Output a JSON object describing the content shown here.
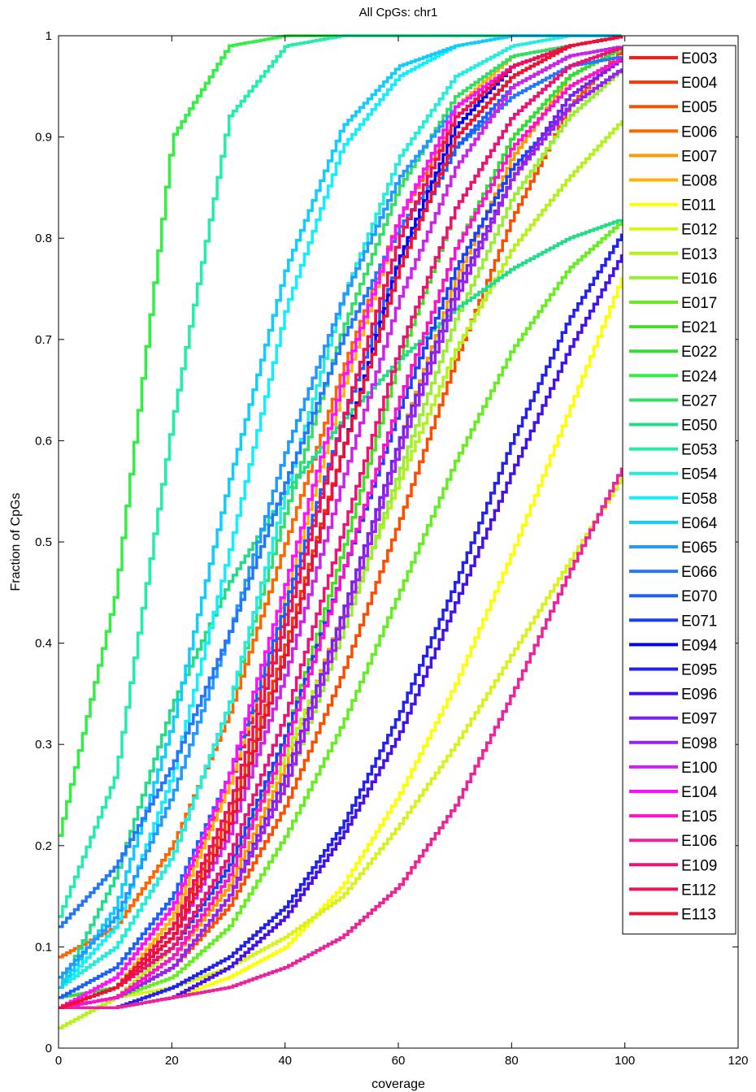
{
  "chart_data": {
    "type": "line",
    "title": "All CpGs: chr1",
    "xlabel": "coverage",
    "ylabel": "Fraction of CpGs",
    "xlim": [
      0,
      120
    ],
    "ylim": [
      0,
      1
    ],
    "xticks": [
      0,
      20,
      40,
      60,
      80,
      100,
      120
    ],
    "yticks": [
      0,
      0.1,
      0.2,
      0.3,
      0.4,
      0.5,
      0.6,
      0.7,
      0.8,
      0.9,
      1
    ],
    "grid": false,
    "legend_position": "top-right, inside",
    "curve_style": "stair-step cumulative",
    "series": [
      {
        "name": "E003",
        "color": "#ff1a1a",
        "values": [
          0.04,
          0.07,
          0.14,
          0.26,
          0.43,
          0.62,
          0.8,
          0.92,
          0.97,
          0.99,
          1.0
        ]
      },
      {
        "name": "E004",
        "color": "#ff3300",
        "values": [
          0.04,
          0.06,
          0.12,
          0.23,
          0.4,
          0.59,
          0.77,
          0.9,
          0.96,
          0.99,
          1.0
        ]
      },
      {
        "name": "E005",
        "color": "#ff4d00",
        "values": [
          0.04,
          0.05,
          0.08,
          0.14,
          0.24,
          0.37,
          0.52,
          0.68,
          0.82,
          0.93,
          0.99
        ]
      },
      {
        "name": "E006",
        "color": "#ff6600",
        "values": [
          0.09,
          0.12,
          0.2,
          0.33,
          0.5,
          0.67,
          0.82,
          0.92,
          0.97,
          0.99,
          1.0
        ]
      },
      {
        "name": "E007",
        "color": "#ff9900",
        "values": [
          0.04,
          0.05,
          0.09,
          0.16,
          0.28,
          0.43,
          0.6,
          0.76,
          0.88,
          0.96,
          0.99
        ]
      },
      {
        "name": "E008",
        "color": "#ffb300",
        "values": [
          0.04,
          0.06,
          0.13,
          0.26,
          0.45,
          0.65,
          0.82,
          0.93,
          0.98,
          0.99,
          1.0
        ]
      },
      {
        "name": "E011",
        "color": "#ffff00",
        "values": [
          0.04,
          0.04,
          0.05,
          0.07,
          0.1,
          0.16,
          0.25,
          0.36,
          0.49,
          0.63,
          0.77
        ]
      },
      {
        "name": "E012",
        "color": "#d9f21a",
        "values": [
          0.04,
          0.05,
          0.06,
          0.08,
          0.11,
          0.15,
          0.22,
          0.3,
          0.39,
          0.48,
          0.57
        ]
      },
      {
        "name": "E013",
        "color": "#b3f21a",
        "values": [
          0.02,
          0.05,
          0.1,
          0.18,
          0.29,
          0.42,
          0.56,
          0.69,
          0.79,
          0.86,
          0.92
        ]
      },
      {
        "name": "E016",
        "color": "#99ee33",
        "values": [
          0.04,
          0.05,
          0.08,
          0.15,
          0.26,
          0.41,
          0.57,
          0.72,
          0.84,
          0.92,
          0.97
        ]
      },
      {
        "name": "E017",
        "color": "#66ee22",
        "values": [
          0.04,
          0.05,
          0.07,
          0.12,
          0.21,
          0.32,
          0.45,
          0.58,
          0.69,
          0.77,
          0.82
        ]
      },
      {
        "name": "E021",
        "color": "#44dd22",
        "values": [
          0.04,
          0.05,
          0.09,
          0.17,
          0.31,
          0.49,
          0.68,
          0.83,
          0.92,
          0.97,
          0.99
        ]
      },
      {
        "name": "E022",
        "color": "#33dd33",
        "values": [
          0.05,
          0.06,
          0.1,
          0.18,
          0.31,
          0.47,
          0.64,
          0.79,
          0.9,
          0.96,
          0.99
        ]
      },
      {
        "name": "E024",
        "color": "#33ee44",
        "values": [
          0.21,
          0.45,
          0.9,
          0.99,
          1.0,
          1.0,
          1.0,
          1.0,
          1.0,
          1.0,
          1.0
        ]
      },
      {
        "name": "E027",
        "color": "#33dd66",
        "values": [
          0.06,
          0.1,
          0.19,
          0.34,
          0.53,
          0.71,
          0.85,
          0.94,
          0.98,
          0.99,
          1.0
        ]
      },
      {
        "name": "E050",
        "color": "#22dd88",
        "values": [
          0.06,
          0.17,
          0.34,
          0.46,
          0.55,
          0.62,
          0.68,
          0.73,
          0.77,
          0.8,
          0.82
        ]
      },
      {
        "name": "E053",
        "color": "#22eeaa",
        "values": [
          0.13,
          0.27,
          0.62,
          0.92,
          0.99,
          1.0,
          1.0,
          1.0,
          1.0,
          1.0,
          1.0
        ]
      },
      {
        "name": "E054",
        "color": "#22eedd",
        "values": [
          0.06,
          0.1,
          0.19,
          0.34,
          0.55,
          0.74,
          0.88,
          0.96,
          0.99,
          1.0,
          1.0
        ]
      },
      {
        "name": "E058",
        "color": "#11eeff",
        "values": [
          0.06,
          0.12,
          0.27,
          0.49,
          0.73,
          0.89,
          0.96,
          0.99,
          1.0,
          1.0,
          1.0
        ]
      },
      {
        "name": "E064",
        "color": "#11ccff",
        "values": [
          0.06,
          0.14,
          0.32,
          0.56,
          0.77,
          0.91,
          0.97,
          0.99,
          1.0,
          1.0,
          1.0
        ]
      },
      {
        "name": "E065",
        "color": "#2299ff",
        "values": [
          0.07,
          0.13,
          0.25,
          0.41,
          0.59,
          0.74,
          0.86,
          0.93,
          0.97,
          0.99,
          1.0
        ]
      },
      {
        "name": "E066",
        "color": "#2277ff",
        "values": [
          0.12,
          0.18,
          0.28,
          0.41,
          0.56,
          0.7,
          0.81,
          0.89,
          0.94,
          0.97,
          0.98
        ]
      },
      {
        "name": "E070",
        "color": "#1a5fff",
        "values": [
          0.05,
          0.08,
          0.15,
          0.27,
          0.44,
          0.62,
          0.78,
          0.89,
          0.95,
          0.98,
          0.99
        ]
      },
      {
        "name": "E071",
        "color": "#1a3fff",
        "values": [
          0.04,
          0.06,
          0.1,
          0.18,
          0.31,
          0.47,
          0.63,
          0.77,
          0.87,
          0.93,
          0.97
        ]
      },
      {
        "name": "E094",
        "color": "#0000ff",
        "values": [
          0.04,
          0.06,
          0.11,
          0.22,
          0.39,
          0.59,
          0.78,
          0.91,
          0.97,
          0.99,
          1.0
        ]
      },
      {
        "name": "E095",
        "color": "#2222ee",
        "values": [
          0.04,
          0.04,
          0.06,
          0.09,
          0.14,
          0.22,
          0.33,
          0.46,
          0.6,
          0.72,
          0.81
        ]
      },
      {
        "name": "E096",
        "color": "#4411ee",
        "values": [
          0.04,
          0.04,
          0.05,
          0.08,
          0.13,
          0.21,
          0.31,
          0.44,
          0.57,
          0.69,
          0.79
        ]
      },
      {
        "name": "E097",
        "color": "#7722ee",
        "values": [
          0.04,
          0.05,
          0.08,
          0.15,
          0.27,
          0.43,
          0.6,
          0.75,
          0.86,
          0.94,
          0.98
        ]
      },
      {
        "name": "E098",
        "color": "#9922ee",
        "values": [
          0.04,
          0.05,
          0.08,
          0.15,
          0.26,
          0.42,
          0.59,
          0.74,
          0.86,
          0.93,
          0.97
        ]
      },
      {
        "name": "E100",
        "color": "#cc22ee",
        "values": [
          0.04,
          0.06,
          0.11,
          0.21,
          0.37,
          0.56,
          0.74,
          0.87,
          0.95,
          0.98,
          0.99
        ]
      },
      {
        "name": "E104",
        "color": "#ff11ff",
        "values": [
          0.04,
          0.07,
          0.14,
          0.27,
          0.46,
          0.66,
          0.82,
          0.93,
          0.97,
          0.99,
          1.0
        ]
      },
      {
        "name": "E105",
        "color": "#ff11cc",
        "values": [
          0.04,
          0.05,
          0.09,
          0.17,
          0.3,
          0.47,
          0.64,
          0.79,
          0.89,
          0.95,
          0.98
        ]
      },
      {
        "name": "E106",
        "color": "#ee2299",
        "values": [
          0.04,
          0.04,
          0.05,
          0.06,
          0.08,
          0.11,
          0.16,
          0.24,
          0.35,
          0.47,
          0.58
        ]
      },
      {
        "name": "E109",
        "color": "#ee1177",
        "values": [
          0.04,
          0.06,
          0.1,
          0.19,
          0.33,
          0.51,
          0.69,
          0.83,
          0.92,
          0.97,
          0.99
        ]
      },
      {
        "name": "E112",
        "color": "#ee1155",
        "values": [
          0.04,
          0.06,
          0.12,
          0.24,
          0.42,
          0.62,
          0.8,
          0.92,
          0.97,
          0.99,
          1.0
        ]
      },
      {
        "name": "E113",
        "color": "#ee1133",
        "values": [
          0.04,
          0.06,
          0.11,
          0.22,
          0.39,
          0.59,
          0.77,
          0.9,
          0.96,
          0.99,
          1.0
        ]
      }
    ],
    "x": [
      0,
      10,
      20,
      30,
      40,
      50,
      60,
      70,
      80,
      90,
      100
    ]
  }
}
